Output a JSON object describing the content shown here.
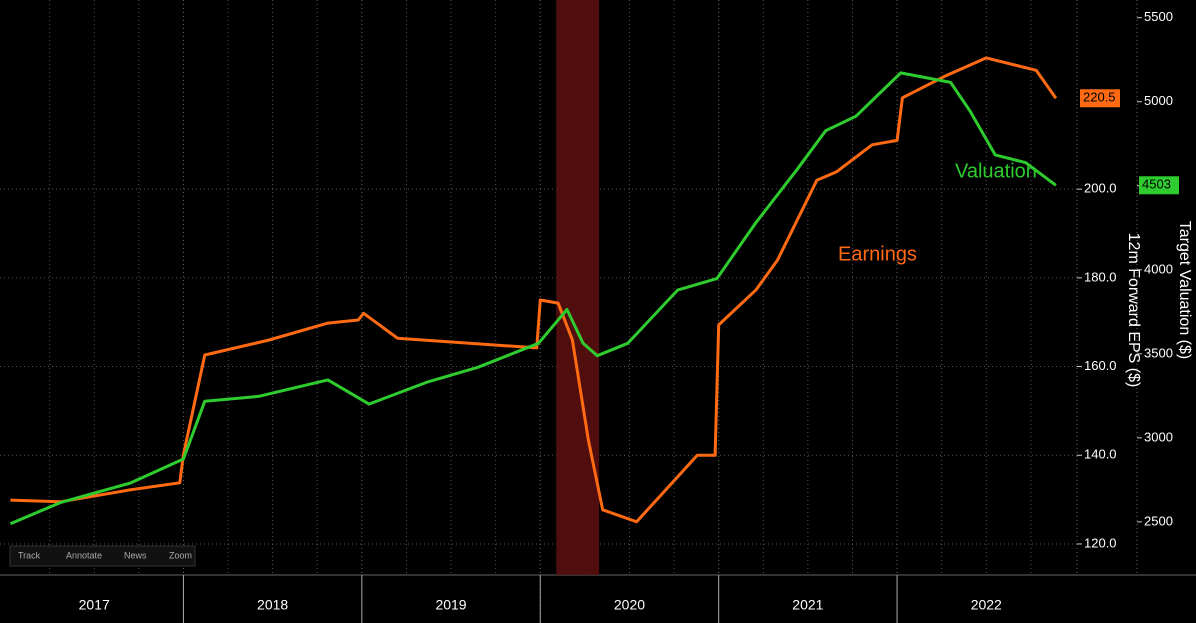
{
  "chart_data": {
    "type": "line",
    "y_label": "12m Forward EPS ($)",
    "y2_label": "Target Valuation ($)",
    "toolbar": [
      "Track",
      "Annotate",
      "News",
      "Zoom"
    ],
    "xlim": [
      2017,
      2023
    ],
    "xticks": [
      2017,
      2018,
      2019,
      2020,
      2021,
      2022
    ],
    "ylim": [
      113,
      240.4
    ],
    "yticks": [
      {
        "value": 120,
        "label": "120.0"
      },
      {
        "value": 140,
        "label": "140.0"
      },
      {
        "value": 160,
        "label": "160.0"
      },
      {
        "value": 180,
        "label": "180.0"
      },
      {
        "value": 200,
        "label": "200.0"
      }
    ],
    "y2lim": [
      2184,
      5546
    ],
    "y2ticks": [
      2500,
      3000,
      3500,
      4000,
      4500,
      5000,
      5500
    ],
    "grid": true,
    "shade": [
      2020.09,
      2020.33
    ],
    "series": [
      {
        "name": "Earnings",
        "color": "#ff6a13",
        "axis": "y",
        "last_value": 220.5,
        "x": [
          2017.03,
          2017.31,
          2017.7,
          2017.98,
          2018.0,
          2018.12,
          2018.48,
          2018.81,
          2018.98,
          2019.01,
          2019.2,
          2019.98,
          2020.0,
          2020.1,
          2020.18,
          2020.27,
          2020.35,
          2020.54,
          2020.88,
          2020.98,
          2021.0,
          2021.21,
          2021.33,
          2021.55,
          2021.66,
          2021.86,
          2022.0,
          2022.03,
          2022.28,
          2022.5,
          2022.78,
          2022.89
        ],
        "values": [
          129.9,
          129.5,
          132.2,
          133.8,
          140.1,
          162.6,
          166,
          169.8,
          170.5,
          172,
          166.4,
          164.2,
          175,
          174.3,
          166,
          143.4,
          127.7,
          125,
          140,
          140,
          169.4,
          177.3,
          184,
          202,
          203.9,
          210,
          211,
          220.6,
          225.7,
          229.6,
          226.8,
          220.5
        ]
      },
      {
        "name": "Valuation",
        "color": "#2ecc2e",
        "axis": "y2",
        "last_value": 4503,
        "x": [
          2017.03,
          2017.31,
          2017.7,
          2018.0,
          2018.12,
          2018.42,
          2018.81,
          2019.04,
          2019.37,
          2019.65,
          2019.99,
          2020.15,
          2020.24,
          2020.32,
          2020.49,
          2020.77,
          2020.99,
          2021.21,
          2021.44,
          2021.6,
          2021.77,
          2022.02,
          2022.3,
          2022.41,
          2022.55,
          2022.72,
          2022.89
        ],
        "values": [
          2489,
          2615,
          2730,
          2874,
          3218,
          3247,
          3345,
          3201,
          3333,
          3420,
          3563,
          3764,
          3563,
          3489,
          3563,
          3879,
          3948,
          4282,
          4598,
          4828,
          4914,
          5172,
          5115,
          4943,
          4684,
          4638,
          4503
        ]
      }
    ]
  }
}
